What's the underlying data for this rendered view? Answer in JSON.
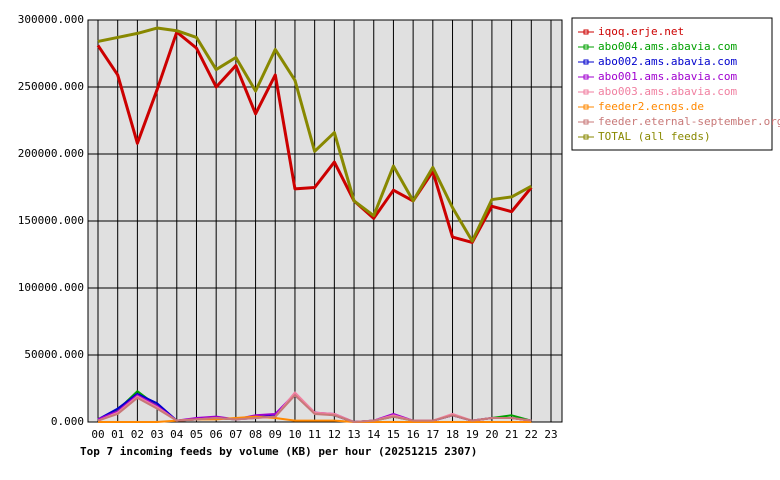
{
  "chart_data": {
    "type": "line",
    "xlabel": "Top 7 incoming feeds by volume (KB) per hour (20251215 2307)",
    "categories": [
      "00",
      "01",
      "02",
      "03",
      "04",
      "05",
      "06",
      "07",
      "08",
      "09",
      "10",
      "11",
      "12",
      "13",
      "14",
      "15",
      "16",
      "17",
      "18",
      "19",
      "20",
      "21",
      "22",
      "23"
    ],
    "ylim": [
      0,
      300000
    ],
    "yticks": [
      {
        "value": 0,
        "label": "0.000"
      },
      {
        "value": 50000,
        "label": "50000.000"
      },
      {
        "value": 100000,
        "label": "100000.000"
      },
      {
        "value": 150000,
        "label": "150000.000"
      },
      {
        "value": 200000,
        "label": "200000.000"
      },
      {
        "value": 250000,
        "label": "250000.000"
      },
      {
        "value": 300000,
        "label": "300000.000"
      }
    ],
    "grid": true,
    "legend": "right",
    "series": [
      {
        "name": "iqoq.erje.net",
        "color": "#cc0000",
        "values": [
          281000,
          259000,
          208000,
          248000,
          291000,
          279000,
          250000,
          266000,
          230000,
          259000,
          174000,
          175000,
          194000,
          165000,
          152000,
          173000,
          165000,
          187000,
          138000,
          134000,
          161000,
          157000,
          175000,
          null
        ]
      },
      {
        "name": "abo004.ams.abavia.com",
        "color": "#00a000",
        "values": [
          2000,
          9000,
          23000,
          12000,
          1000,
          2000,
          3000,
          2000,
          4000,
          4000,
          21000,
          7000,
          5000,
          0,
          1000,
          4000,
          1000,
          1000,
          5000,
          1000,
          3000,
          5000,
          1000,
          null
        ]
      },
      {
        "name": "abo002.ams.abavia.com",
        "color": "#0000cc",
        "values": [
          2000,
          10000,
          21000,
          14000,
          1000,
          2000,
          3000,
          2000,
          3000,
          5000,
          20000,
          7000,
          5000,
          0,
          1000,
          5000,
          1000,
          1000,
          5000,
          1000,
          3000,
          3000,
          1000,
          null
        ]
      },
      {
        "name": "abo001.ams.abavia.com",
        "color": "#a000d0",
        "values": [
          2000,
          8000,
          20000,
          12000,
          1000,
          3000,
          4000,
          2000,
          5000,
          6000,
          21000,
          7000,
          6000,
          0,
          1000,
          6000,
          1000,
          1000,
          5000,
          1000,
          3000,
          3000,
          1000,
          null
        ]
      },
      {
        "name": "abo003.ams.abavia.com",
        "color": "#f07fa0",
        "values": [
          1000,
          7000,
          19000,
          11000,
          1000,
          2000,
          3000,
          2000,
          3000,
          4000,
          22000,
          7000,
          6000,
          0,
          1000,
          5000,
          1000,
          1000,
          6000,
          1000,
          3000,
          3000,
          1000,
          null
        ]
      },
      {
        "name": "feeder2.ecngs.de",
        "color": "#ff8800",
        "values": [
          0,
          0,
          0,
          0,
          1000,
          2000,
          2000,
          3000,
          4000,
          3000,
          1000,
          1000,
          1000,
          0,
          0,
          0,
          0,
          0,
          0,
          0,
          0,
          0,
          0,
          null
        ]
      },
      {
        "name": "feeder.eternal-september.org",
        "color": "#c87878",
        "values": [
          1000,
          6000,
          18000,
          10000,
          1000,
          2000,
          3000,
          2000,
          3000,
          4000,
          20000,
          6000,
          5000,
          0,
          1000,
          4000,
          1000,
          1000,
          5000,
          1000,
          3000,
          3000,
          1000,
          null
        ]
      },
      {
        "name": "TOTAL (all feeds)",
        "color": "#888800",
        "values": [
          284000,
          287000,
          290000,
          294000,
          292000,
          287000,
          263000,
          272000,
          247000,
          278000,
          255000,
          202000,
          216000,
          165000,
          154000,
          191000,
          165000,
          190000,
          160000,
          135000,
          166000,
          168000,
          176000,
          null
        ]
      }
    ]
  }
}
